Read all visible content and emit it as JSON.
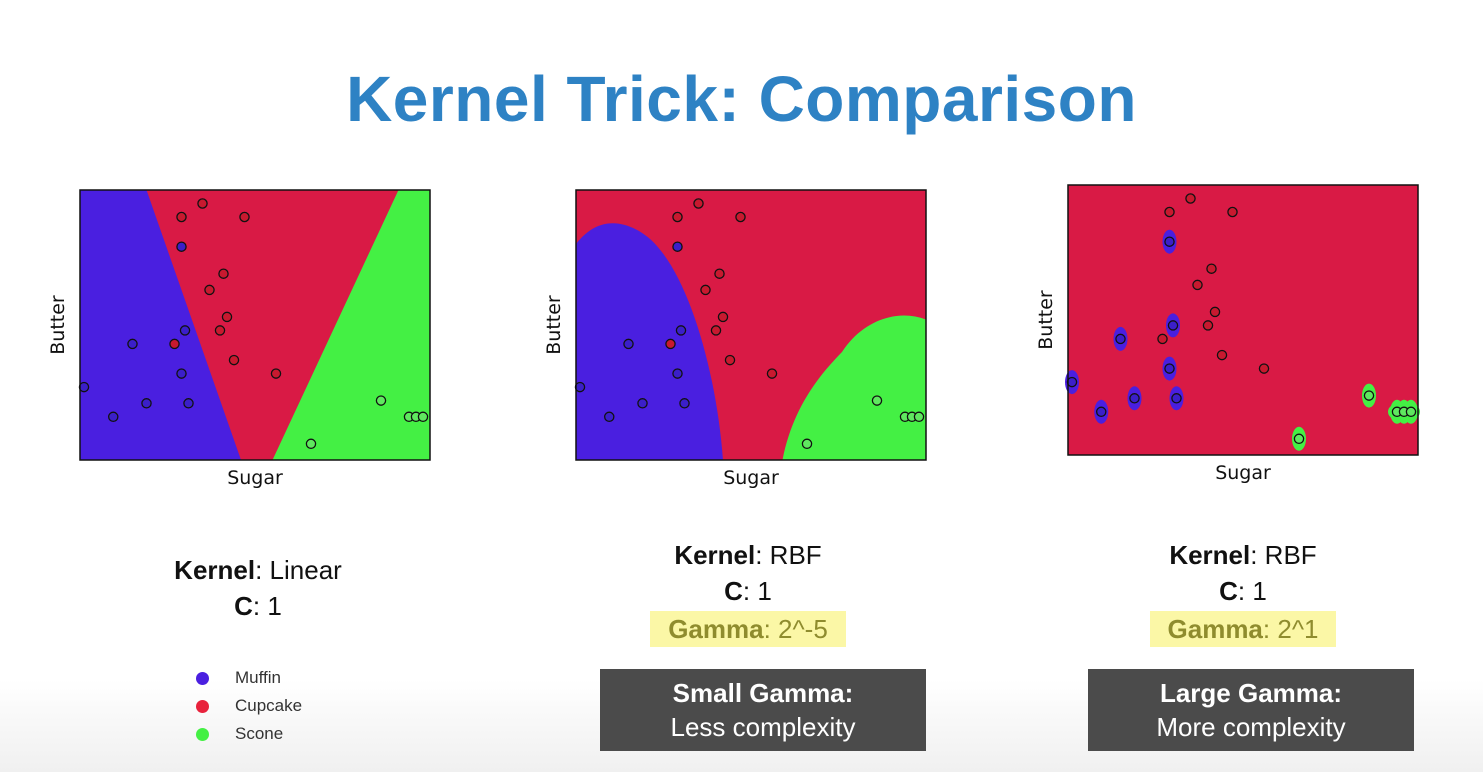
{
  "title": "Kernel Trick: Comparison",
  "colors": {
    "muffin": "#4a1fe0",
    "cupcake": "#d91a45",
    "scone": "#44f044",
    "title": "#2e82c4",
    "highlight": "#fbf7a6",
    "note_bg": "#4b4b4b"
  },
  "legend": [
    {
      "label": "Muffin",
      "color": "#4a1fe0"
    },
    {
      "label": "Cupcake",
      "color": "#e8223c"
    },
    {
      "label": "Scone",
      "color": "#44f044"
    }
  ],
  "panels": [
    {
      "kernel_label": "Kernel",
      "kernel_value": ": Linear",
      "c_label": "C",
      "c_value": ": 1"
    },
    {
      "kernel_label": "Kernel",
      "kernel_value": ": RBF",
      "c_label": "C",
      "c_value": ": 1",
      "gamma_label": "Gamma",
      "gamma_value": ": 2^-5",
      "note_title": "Small Gamma:",
      "note_text": "Less complexity"
    },
    {
      "kernel_label": "Kernel",
      "kernel_value": ": RBF",
      "c_label": "C",
      "c_value": ": 1",
      "gamma_label": "Gamma",
      "gamma_value": ": 2^1",
      "note_title": "Large Gamma:",
      "note_text": "More complexity"
    }
  ],
  "chart_data": [
    {
      "type": "scatter",
      "xlabel": "Sugar",
      "ylabel": "Butter",
      "xlim": [
        0,
        100
      ],
      "ylim": [
        0,
        100
      ],
      "decision_regions": "linear",
      "series": [
        {
          "name": "Muffin",
          "x": [
            0.5,
            29,
            15,
            9.5,
            19,
            30,
            29,
            31
          ],
          "y": [
            27,
            79,
            43,
            16,
            21,
            48,
            32,
            21
          ]
        },
        {
          "name": "Cupcake",
          "x": [
            29,
            35,
            47,
            41,
            37,
            40,
            42,
            44,
            27,
            56
          ],
          "y": [
            90,
            95,
            90,
            69,
            63,
            48,
            53,
            37,
            43,
            32
          ]
        },
        {
          "name": "Scone",
          "x": [
            66,
            86,
            94,
            96,
            98
          ],
          "y": [
            6,
            22,
            16,
            16,
            16
          ]
        }
      ]
    },
    {
      "type": "scatter",
      "xlabel": "Sugar",
      "ylabel": "Butter",
      "xlim": [
        0,
        100
      ],
      "ylim": [
        0,
        100
      ],
      "decision_regions": "rbf-smooth",
      "series": [
        {
          "name": "Muffin",
          "x": [
            0.5,
            29,
            15,
            9.5,
            19,
            30,
            29,
            31
          ],
          "y": [
            27,
            79,
            43,
            16,
            21,
            48,
            32,
            21
          ]
        },
        {
          "name": "Cupcake",
          "x": [
            29,
            35,
            47,
            41,
            37,
            40,
            42,
            44,
            27,
            56
          ],
          "y": [
            90,
            95,
            90,
            69,
            63,
            48,
            53,
            37,
            43,
            32
          ]
        },
        {
          "name": "Scone",
          "x": [
            66,
            86,
            94,
            96,
            98
          ],
          "y": [
            6,
            22,
            16,
            16,
            16
          ]
        }
      ]
    },
    {
      "type": "scatter",
      "xlabel": "Sugar",
      "ylabel": "Butter",
      "xlim": [
        0,
        100
      ],
      "ylim": [
        0,
        100
      ],
      "decision_regions": "rbf-islands",
      "series": [
        {
          "name": "Muffin",
          "x": [
            0.5,
            29,
            15,
            9.5,
            19,
            30,
            29,
            31
          ],
          "y": [
            27,
            79,
            43,
            16,
            21,
            48,
            32,
            21
          ]
        },
        {
          "name": "Cupcake",
          "x": [
            29,
            35,
            47,
            41,
            37,
            40,
            42,
            44,
            27,
            56
          ],
          "y": [
            90,
            95,
            90,
            69,
            63,
            48,
            53,
            37,
            43,
            32
          ]
        },
        {
          "name": "Scone",
          "x": [
            66,
            86,
            94,
            96,
            98
          ],
          "y": [
            6,
            22,
            16,
            16,
            16
          ]
        }
      ]
    }
  ]
}
